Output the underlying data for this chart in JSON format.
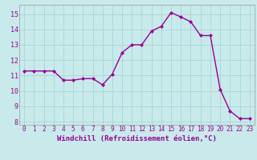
{
  "x": [
    0,
    1,
    2,
    3,
    4,
    5,
    6,
    7,
    8,
    9,
    10,
    11,
    12,
    13,
    14,
    15,
    16,
    17,
    18,
    19,
    20,
    21,
    22,
    23
  ],
  "y": [
    11.3,
    11.3,
    11.3,
    11.3,
    10.7,
    10.7,
    10.8,
    10.8,
    10.4,
    11.1,
    12.5,
    13.0,
    13.0,
    13.9,
    14.2,
    15.1,
    14.8,
    14.5,
    13.6,
    13.6,
    10.1,
    8.7,
    8.2,
    8.2
  ],
  "line_color": "#990099",
  "marker_color": "#990099",
  "bg_color": "#c8eaea",
  "grid_color": "#aad4d4",
  "xlabel": "Windchill (Refroidissement éolien,°C)",
  "ylim": [
    7.8,
    15.6
  ],
  "xlim": [
    -0.5,
    23.5
  ],
  "yticks": [
    8,
    9,
    10,
    11,
    12,
    13,
    14,
    15
  ],
  "xticks": [
    0,
    1,
    2,
    3,
    4,
    5,
    6,
    7,
    8,
    9,
    10,
    11,
    12,
    13,
    14,
    15,
    16,
    17,
    18,
    19,
    20,
    21,
    22,
    23
  ],
  "font_color": "#990099",
  "font_family": "monospace",
  "tick_fontsize": 5.5,
  "xlabel_fontsize": 6.5,
  "linewidth": 1.0,
  "markersize": 2.0
}
